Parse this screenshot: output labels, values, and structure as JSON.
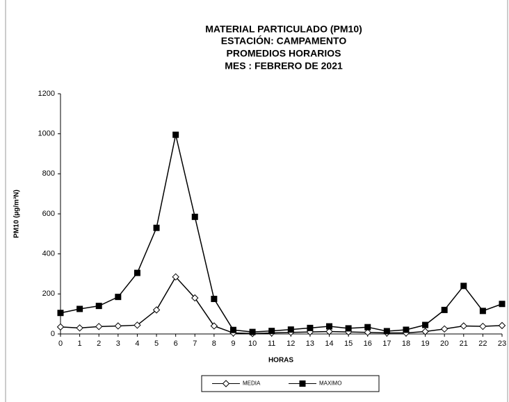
{
  "chart_data": {
    "type": "line",
    "title": [
      "MATERIAL PARTICULADO (PM10)",
      "ESTACIÓN: CAMPAMENTO",
      "PROMEDIOS HORARIOS",
      "MES : FEBRERO DE 2021"
    ],
    "x_label": "HORAS",
    "y_label": "PM10 (µg/m³N)",
    "x": [
      0,
      1,
      2,
      3,
      4,
      5,
      6,
      7,
      8,
      9,
      10,
      11,
      12,
      13,
      14,
      15,
      16,
      17,
      18,
      19,
      20,
      21,
      22,
      23
    ],
    "xlim": [
      0,
      23
    ],
    "xticks": [
      0,
      1,
      2,
      3,
      4,
      5,
      6,
      7,
      8,
      9,
      10,
      11,
      12,
      13,
      14,
      15,
      16,
      17,
      18,
      19,
      20,
      21,
      22,
      23
    ],
    "ylim": [
      0,
      1200
    ],
    "yticks": [
      0,
      200,
      400,
      600,
      800,
      1000,
      1200
    ],
    "grid": false,
    "legend": "bottom",
    "series": [
      {
        "name": "MEDIA",
        "color": "#000000",
        "marker": "diamond-open",
        "values": [
          35,
          30,
          37,
          40,
          44,
          120,
          285,
          180,
          40,
          5,
          2,
          5,
          8,
          10,
          12,
          10,
          8,
          5,
          5,
          12,
          25,
          40,
          38,
          42
        ]
      },
      {
        "name": "MAXIMO",
        "color": "#000000",
        "marker": "square",
        "values": [
          105,
          125,
          140,
          185,
          305,
          530,
          995,
          585,
          175,
          20,
          10,
          15,
          22,
          30,
          38,
          28,
          34,
          14,
          21,
          45,
          120,
          240,
          115,
          150
        ]
      }
    ]
  }
}
